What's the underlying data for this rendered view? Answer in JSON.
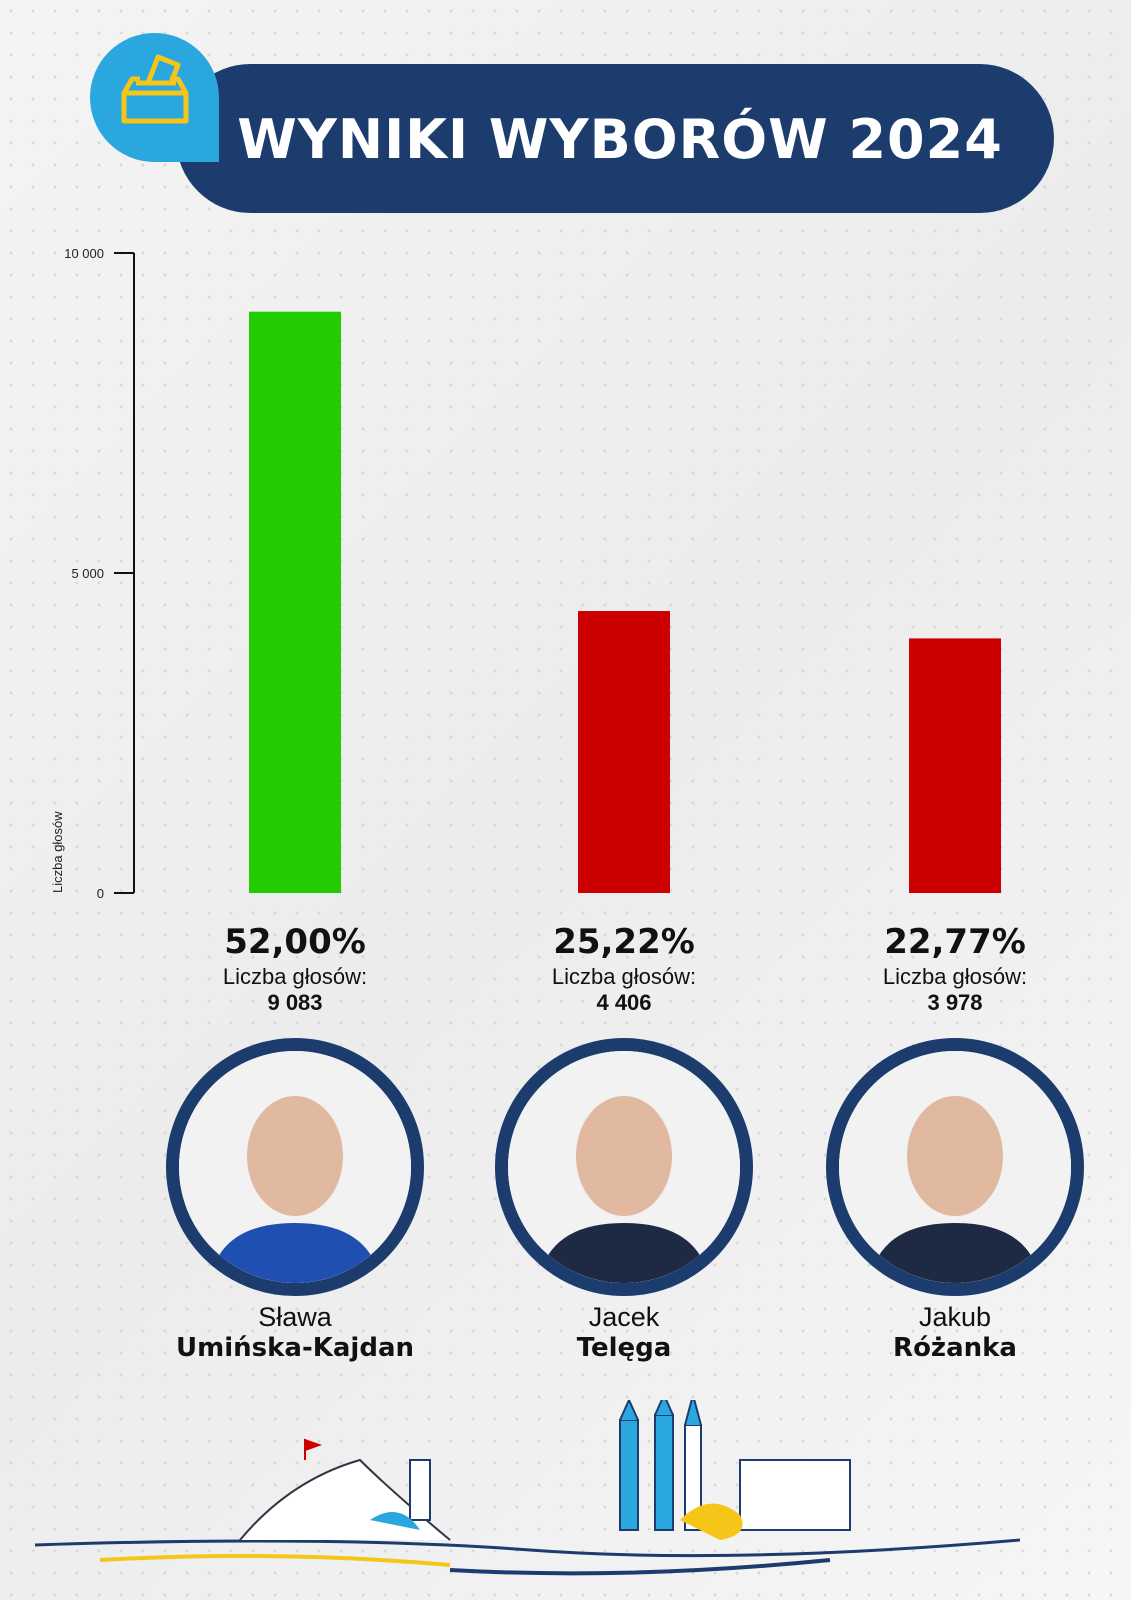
{
  "header": {
    "title": "WYNIKI WYBORÓW 2024",
    "icon": "ballot-box-icon"
  },
  "colors": {
    "winner": "#22cc00",
    "other": "#cc0000",
    "navy": "#1c3c6e",
    "accent": "#2aa7df",
    "icon": "#f5c518"
  },
  "chart_data": {
    "type": "bar",
    "title": "WYNIKI WYBORÓW 2024",
    "ylabel": "Liczba głosów",
    "xlabel": "",
    "ylim": [
      0,
      10000
    ],
    "yticks": [
      {
        "value": 0,
        "label": "0"
      },
      {
        "value": 5000,
        "label": "5 000"
      },
      {
        "value": 10000,
        "label": "10 000"
      }
    ],
    "categories": [
      "Sława Umińska-Kajdan",
      "Jacek Telęga",
      "Jakub Różanka"
    ],
    "values": [
      9083,
      4406,
      3978
    ],
    "bar_colors": [
      "#22cc00",
      "#cc0000",
      "#cc0000"
    ]
  },
  "candidates": [
    {
      "percent": "52,00%",
      "votes_label": "Liczba głosów:",
      "votes": "9 083",
      "first": "Sława",
      "last": "Umińska-Kajdan"
    },
    {
      "percent": "25,22%",
      "votes_label": "Liczba głosów:",
      "votes": "4 406",
      "first": "Jacek",
      "last": "Telęga"
    },
    {
      "percent": "22,77%",
      "votes_label": "Liczba głosów:",
      "votes": "3 978",
      "first": "Jakub",
      "last": "Różanka"
    }
  ]
}
